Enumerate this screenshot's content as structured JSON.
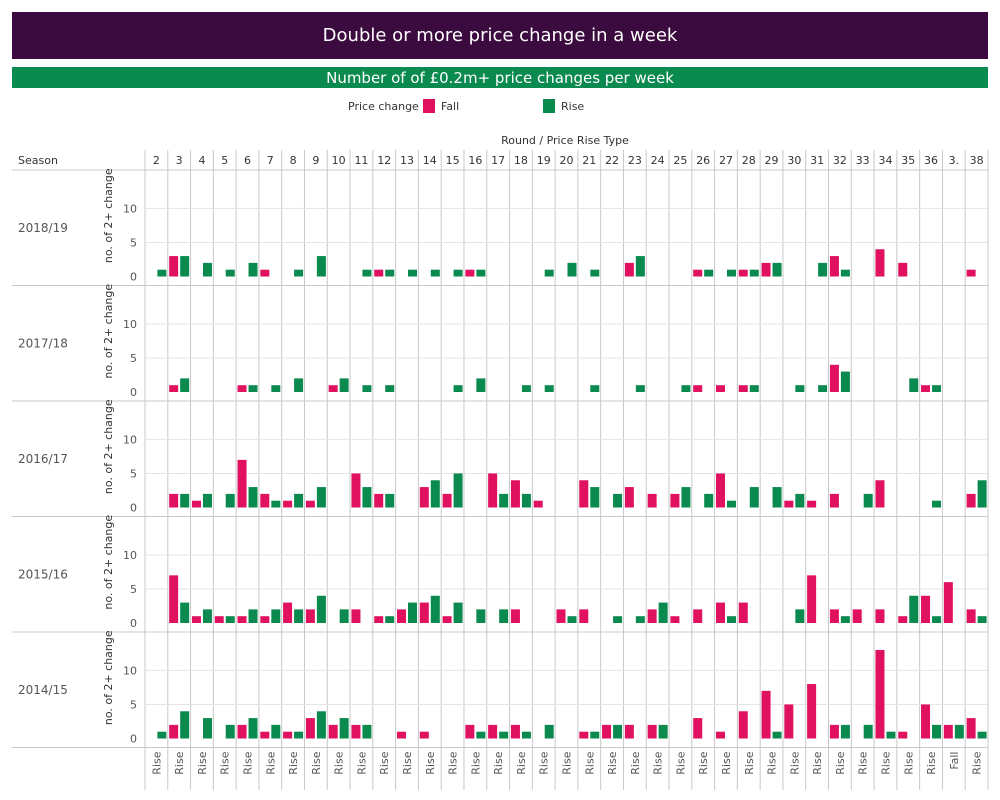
{
  "title": "Double or more price change in a week",
  "subtitle": "Number of of £0.2m+ price changes per week",
  "legend": {
    "title": "Price change",
    "items": [
      {
        "label": "Fall",
        "color": "#e0115f"
      },
      {
        "label": "Rise",
        "color": "#0a8a4e"
      }
    ]
  },
  "colors": {
    "title_bg": "#3b0a3f",
    "subtitle_bg": "#0a8a4e",
    "fall": "#e0115f",
    "rise": "#0a8a4e"
  },
  "chart_data": {
    "type": "bar",
    "column_header": "Round  /  Price Rise Type",
    "row_header": "Season",
    "ylabel": "no. of 2+ change",
    "yticks": [
      0,
      5,
      10
    ],
    "ylim": [
      0,
      13
    ],
    "rounds": [
      "2",
      "3",
      "4",
      "5",
      "6",
      "7",
      "8",
      "9",
      "10",
      "11",
      "12",
      "13",
      "14",
      "15",
      "16",
      "17",
      "18",
      "19",
      "20",
      "21",
      "22",
      "23",
      "24",
      "25",
      "26",
      "27",
      "28",
      "29",
      "30",
      "31",
      "32",
      "33",
      "34",
      "35",
      "36",
      "3.",
      "38"
    ],
    "bottom_labels": [
      "Rise",
      "Rise",
      "Rise",
      "Rise",
      "Rise",
      "Rise",
      "Rise",
      "Rise",
      "Rise",
      "Rise",
      "Rise",
      "Rise",
      "Rise",
      "Rise",
      "Rise",
      "Rise",
      "Rise",
      "Rise",
      "Rise",
      "Rise",
      "Rise",
      "Rise",
      "Rise",
      "Rise",
      "Rise",
      "Rise",
      "Rise",
      "Rise",
      "Rise",
      "Rise",
      "Rise",
      "Rise",
      "Rise",
      "Rise",
      "Rise",
      "Fall",
      "Rise"
    ],
    "seasons": [
      {
        "season": "2018/19",
        "fall": [
          0,
          3,
          0,
          0,
          0,
          1,
          0,
          0,
          0,
          0,
          1,
          0,
          0,
          0,
          1,
          0,
          0,
          0,
          0,
          0,
          0,
          2,
          0,
          0,
          1,
          0,
          1,
          2,
          0,
          0,
          3,
          0,
          4,
          2,
          0,
          0,
          1
        ],
        "rise": [
          1,
          3,
          2,
          1,
          2,
          0,
          1,
          3,
          0,
          1,
          1,
          1,
          1,
          1,
          1,
          0,
          0,
          1,
          2,
          1,
          0,
          3,
          0,
          0,
          1,
          1,
          1,
          2,
          0,
          2,
          1,
          0,
          0,
          0,
          0,
          0,
          0
        ]
      },
      {
        "season": "2017/18",
        "fall": [
          0,
          1,
          0,
          0,
          1,
          0,
          0,
          0,
          1,
          0,
          0,
          0,
          0,
          0,
          0,
          0,
          0,
          0,
          0,
          0,
          0,
          0,
          0,
          0,
          1,
          1,
          1,
          0,
          0,
          0,
          4,
          0,
          0,
          0,
          1,
          0,
          0
        ],
        "rise": [
          0,
          2,
          0,
          0,
          1,
          1,
          2,
          0,
          2,
          1,
          1,
          0,
          0,
          1,
          2,
          0,
          1,
          1,
          0,
          1,
          0,
          1,
          0,
          1,
          0,
          0,
          1,
          0,
          1,
          1,
          3,
          0,
          0,
          2,
          1,
          0,
          0
        ]
      },
      {
        "season": "2016/17",
        "fall": [
          0,
          2,
          1,
          0,
          7,
          2,
          1,
          1,
          0,
          5,
          2,
          0,
          3,
          2,
          0,
          5,
          4,
          1,
          0,
          4,
          0,
          3,
          2,
          2,
          0,
          5,
          0,
          0,
          1,
          1,
          2,
          0,
          4,
          0,
          0,
          0,
          2
        ],
        "rise": [
          0,
          2,
          2,
          2,
          3,
          1,
          2,
          3,
          0,
          3,
          2,
          0,
          4,
          5,
          0,
          2,
          2,
          0,
          0,
          3,
          2,
          0,
          0,
          3,
          2,
          1,
          3,
          3,
          2,
          0,
          0,
          2,
          0,
          0,
          1,
          0,
          4
        ]
      },
      {
        "season": "2015/16",
        "fall": [
          0,
          7,
          1,
          1,
          1,
          1,
          3,
          2,
          0,
          2,
          1,
          2,
          3,
          1,
          0,
          0,
          2,
          0,
          2,
          2,
          0,
          0,
          2,
          1,
          2,
          3,
          3,
          0,
          0,
          7,
          2,
          2,
          2,
          1,
          4,
          6,
          2
        ],
        "rise": [
          0,
          3,
          2,
          1,
          2,
          2,
          2,
          4,
          2,
          0,
          1,
          3,
          4,
          3,
          2,
          2,
          0,
          0,
          1,
          0,
          1,
          1,
          3,
          0,
          0,
          1,
          0,
          0,
          2,
          0,
          1,
          0,
          0,
          4,
          1,
          0,
          1
        ]
      },
      {
        "season": "2014/15",
        "fall": [
          0,
          2,
          0,
          0,
          2,
          1,
          1,
          3,
          2,
          2,
          0,
          1,
          1,
          0,
          2,
          2,
          2,
          0,
          0,
          1,
          2,
          2,
          2,
          0,
          3,
          1,
          4,
          7,
          5,
          8,
          2,
          0,
          13,
          1,
          5,
          2,
          3
        ],
        "rise": [
          1,
          4,
          3,
          2,
          3,
          2,
          1,
          4,
          3,
          2,
          0,
          0,
          0,
          0,
          1,
          1,
          1,
          2,
          0,
          1,
          2,
          0,
          2,
          0,
          0,
          0,
          0,
          1,
          0,
          0,
          2,
          2,
          1,
          0,
          2,
          2,
          1
        ]
      }
    ]
  }
}
